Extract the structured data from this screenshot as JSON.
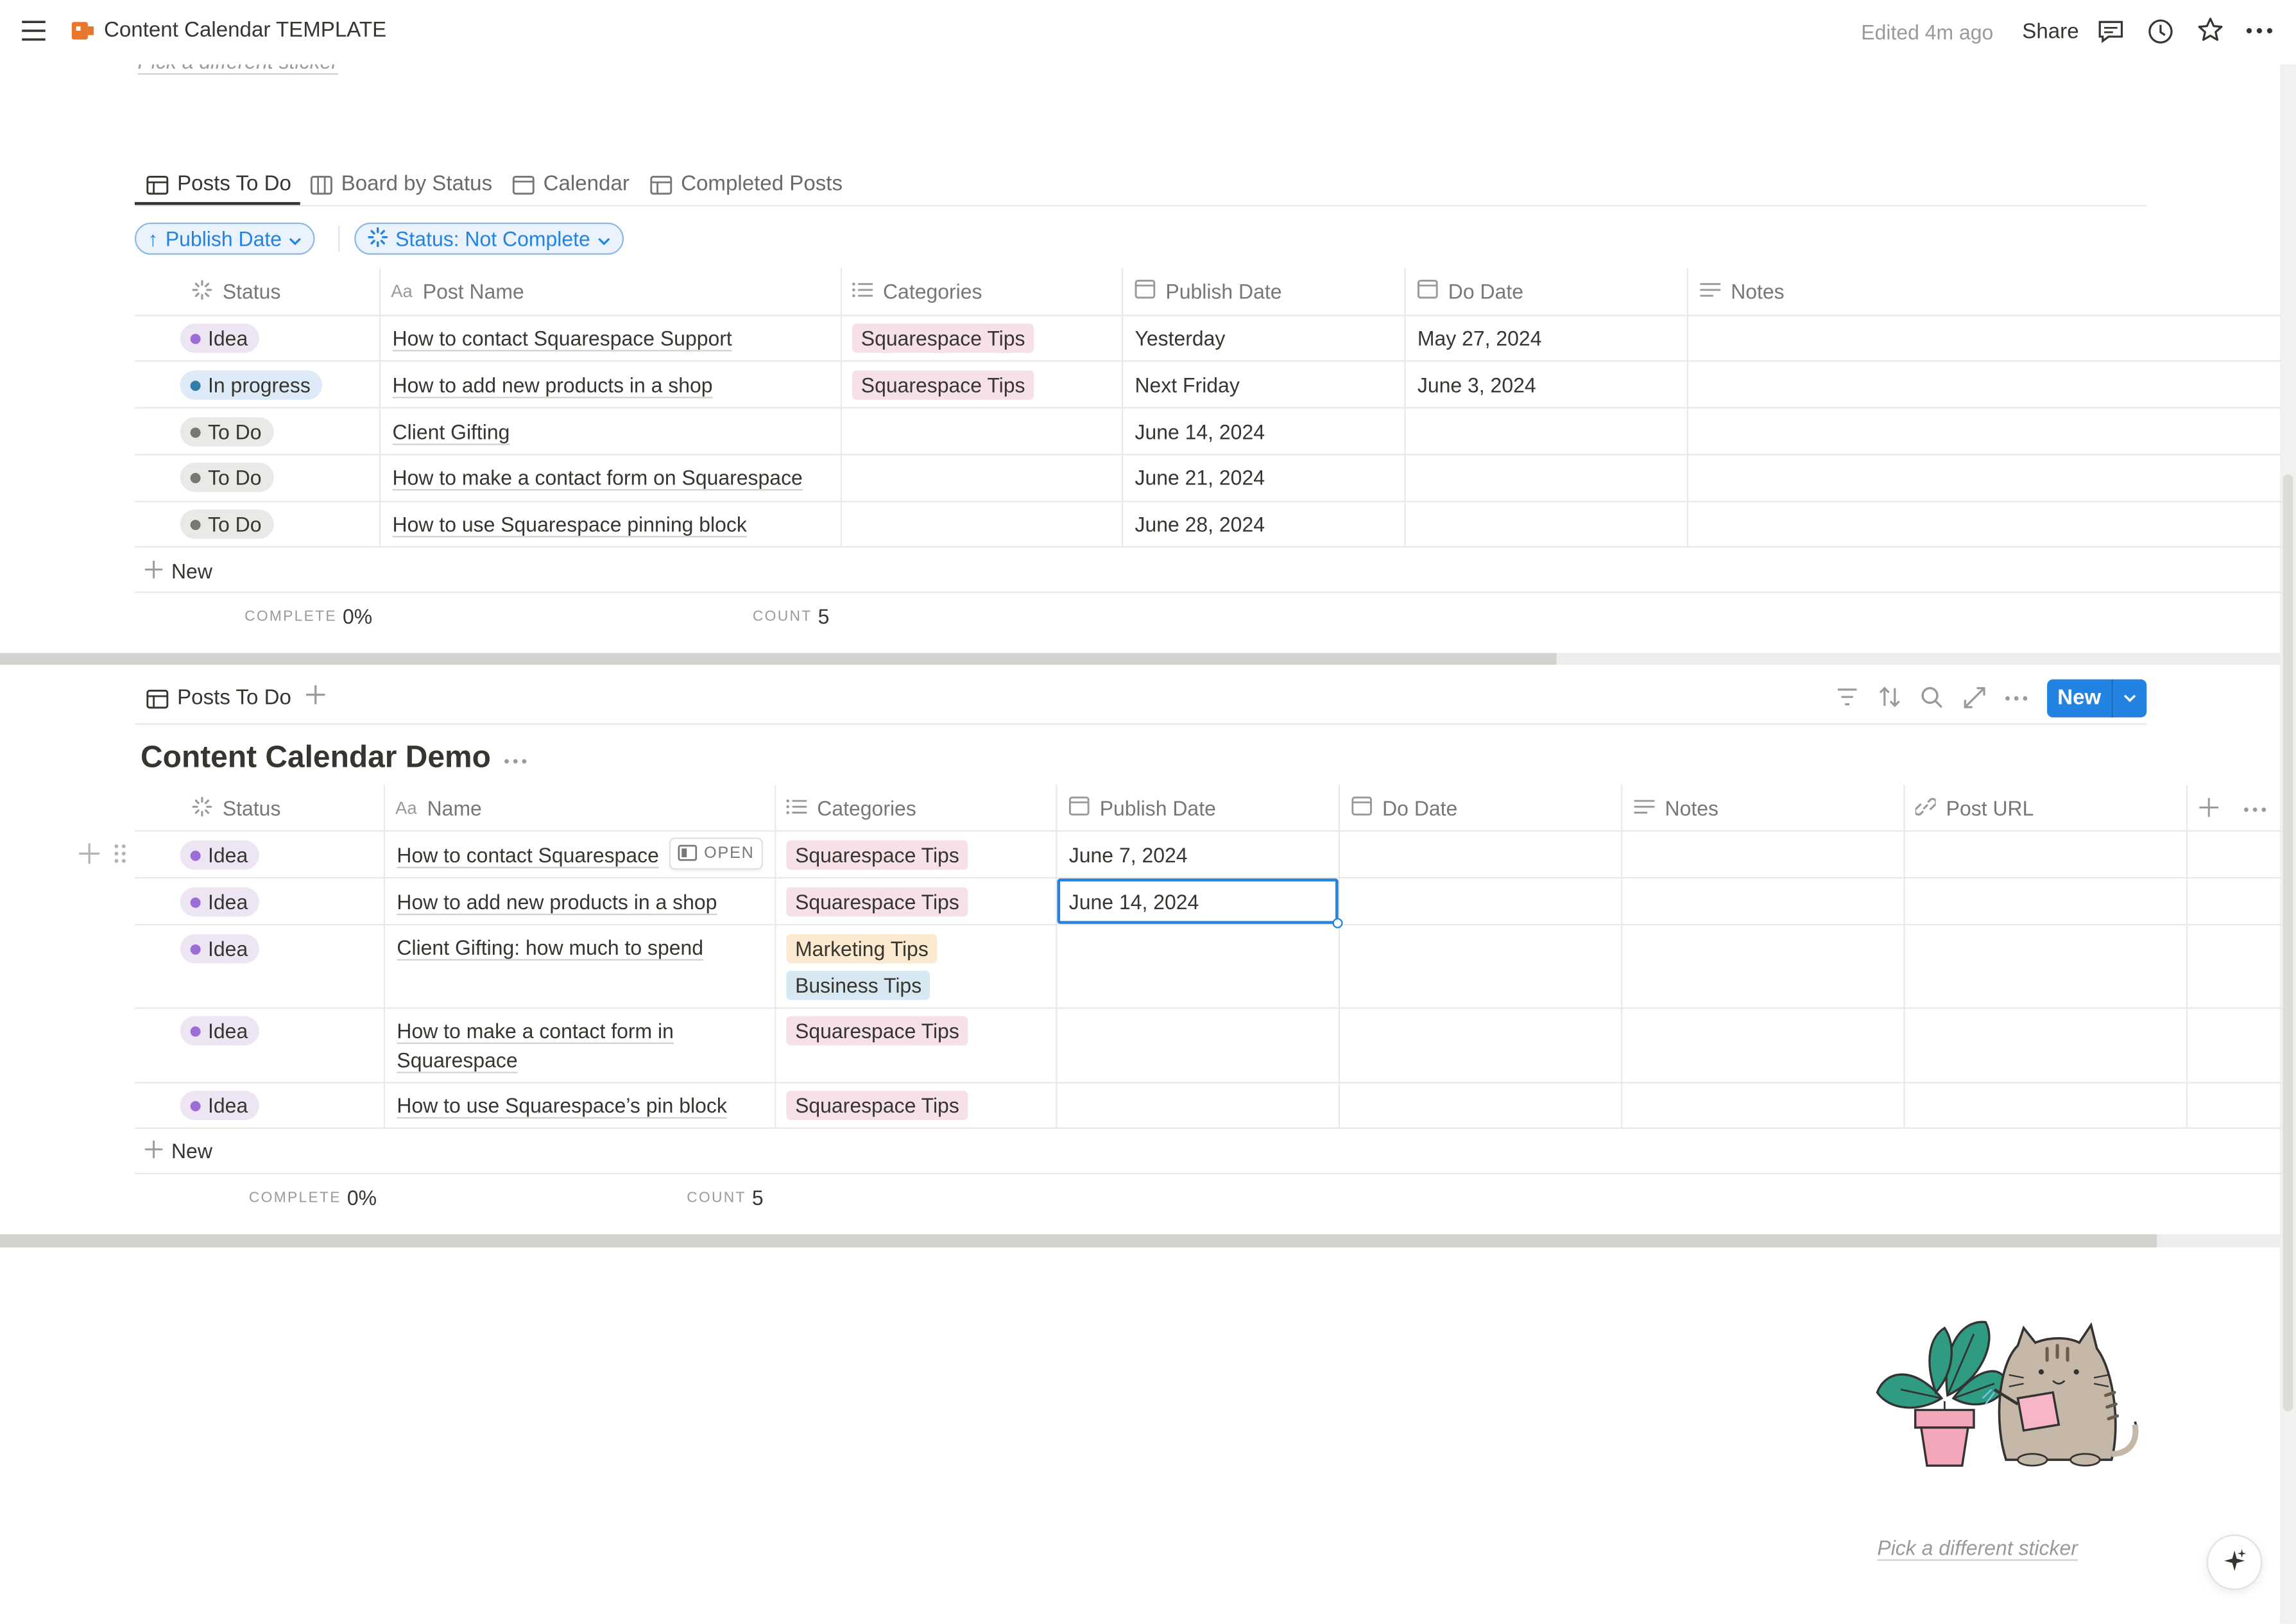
{
  "topbar": {
    "title": "Content Calendar TEMPLATE",
    "edited": "Edited 4m ago",
    "share": "Share"
  },
  "sticker_top_link": "Pick a different sticker",
  "view1": {
    "tabs": [
      "Posts To Do",
      "Board by Status",
      "Calendar",
      "Completed Posts"
    ],
    "sort_pill": "Publish Date",
    "filter_pill": "Status: Not Complete",
    "columns": [
      "Status",
      "Post Name",
      "Categories",
      "Publish Date",
      "Do Date",
      "Notes"
    ],
    "rows": [
      {
        "status": "Idea",
        "name": "How to contact Squarespace Support",
        "category": "Squarespace Tips",
        "publish": "Yesterday",
        "do": "May 27, 2024"
      },
      {
        "status": "In progress",
        "name": "How to add new products in a shop",
        "category": "Squarespace Tips",
        "publish": "Next Friday",
        "do": "June 3, 2024"
      },
      {
        "status": "To Do",
        "name": "Client Gifting",
        "category": "",
        "publish": "June 14, 2024",
        "do": ""
      },
      {
        "status": "To Do",
        "name": "How to make a contact form on Squarespace",
        "category": "",
        "publish": "June 21, 2024",
        "do": ""
      },
      {
        "status": "To Do",
        "name": "How to use Squarespace pinning block",
        "category": "",
        "publish": "June 28, 2024",
        "do": ""
      }
    ],
    "new_label": "New",
    "complete_label": "COMPLETE",
    "complete_value": "0%",
    "count_label": "COUNT",
    "count_value": "5"
  },
  "view2": {
    "tab": "Posts To Do",
    "new_button": "New",
    "db_title": "Content Calendar Demo",
    "columns": [
      "Status",
      "Name",
      "Categories",
      "Publish Date",
      "Do Date",
      "Notes",
      "Post URL"
    ],
    "open_label": "OPEN",
    "rows": [
      {
        "status": "Idea",
        "name": "How to contact Squarespace",
        "categories": [
          "Squarespace Tips"
        ],
        "publish": "June 7, 2024"
      },
      {
        "status": "Idea",
        "name": "How to add new products in a shop",
        "categories": [
          "Squarespace Tips"
        ],
        "publish": "June 14, 2024"
      },
      {
        "status": "Idea",
        "name": "Client Gifting: how much to spend",
        "categories": [
          "Marketing Tips",
          "Business Tips"
        ],
        "publish": ""
      },
      {
        "status": "Idea",
        "name_line1": "How to make a contact form in",
        "name_line2": "Squarespace",
        "categories": [
          "Squarespace Tips"
        ],
        "publish": ""
      },
      {
        "status": "Idea",
        "name": "How to use Squarespace’s pin block",
        "categories": [
          "Squarespace Tips"
        ],
        "publish": ""
      }
    ],
    "new_label": "New",
    "complete_label": "COMPLETE",
    "complete_value": "0%",
    "count_label": "COUNT",
    "count_value": "5"
  },
  "sticker_bottom_link": "Pick a different sticker",
  "colors": {
    "accent": "#2383e2",
    "tag_squarespace": "#f6e1ea",
    "tag_marketing": "#fbeacf",
    "tag_business": "#d8e8f3"
  }
}
